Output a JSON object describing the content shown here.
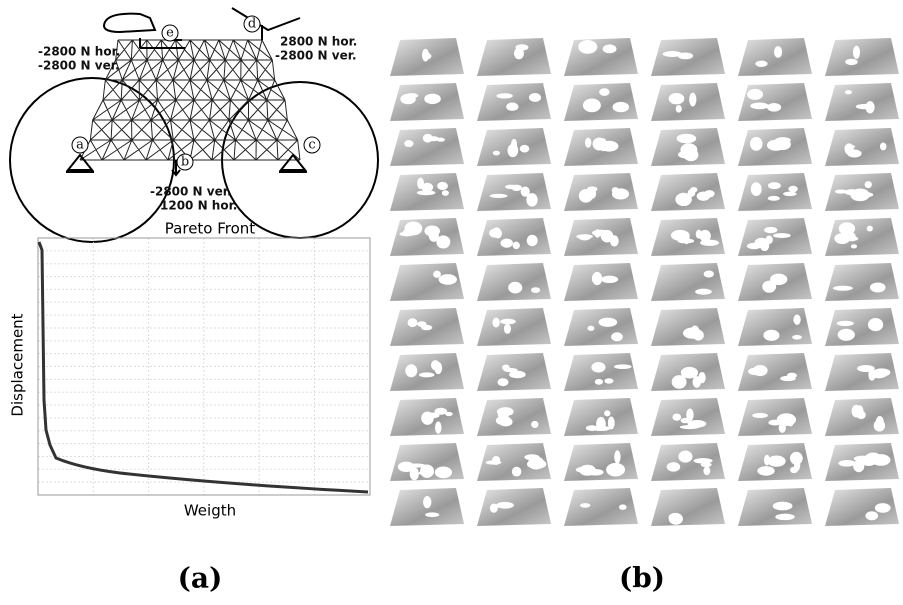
{
  "figure_a": {
    "nodes": [
      "a",
      "b",
      "c",
      "d",
      "e"
    ],
    "loads": {
      "e": [
        "-2800 N hor.",
        "-2800 N ver."
      ],
      "d": [
        "2800 N hor.",
        "-2800 N ver."
      ],
      "b": [
        "-2800 N ver.",
        "1200 N hor."
      ]
    },
    "chart": {
      "title": "Pareto Front",
      "x_label": "Weigth",
      "y_label": "Displacement"
    },
    "caption": "(a)"
  },
  "figure_b": {
    "caption": "(b)"
  }
}
